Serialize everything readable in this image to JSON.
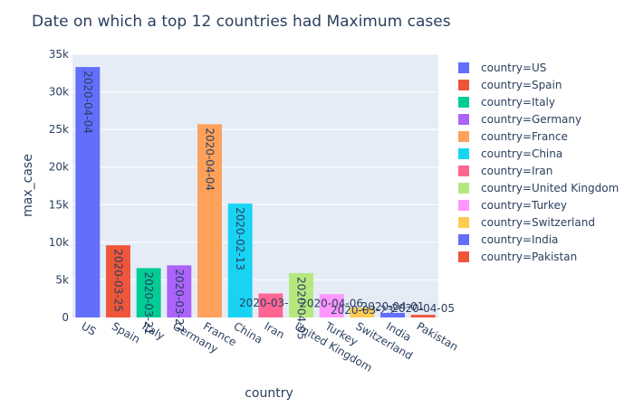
{
  "chart_data": {
    "type": "bar",
    "title": "Date on which a top 12 countries had Maximum cases",
    "xlabel": "country",
    "ylabel": "max_case",
    "ylim": [
      0,
      35000
    ],
    "yticks": [
      0,
      5000,
      10000,
      15000,
      20000,
      25000,
      30000,
      35000
    ],
    "ytick_labels": [
      "0",
      "5k",
      "10k",
      "15k",
      "20k",
      "25k",
      "30k",
      "35k"
    ],
    "grid": true,
    "legend_position": "right",
    "categories": [
      "US",
      "Spain",
      "Italy",
      "Germany",
      "France",
      "China",
      "Iran",
      "United Kingdom",
      "Turkey",
      "Switzerland",
      "India",
      "Pakistan"
    ],
    "series": [
      {
        "name": "country=US",
        "category": "US",
        "value": 33300,
        "label": "2020-04-04",
        "color": "#636efa"
      },
      {
        "name": "country=Spain",
        "category": "Spain",
        "value": 9600,
        "label": "2020-03-25",
        "color": "#EF553B"
      },
      {
        "name": "country=Italy",
        "category": "Italy",
        "value": 6560,
        "label": "2020-03-21",
        "color": "#00cc96"
      },
      {
        "name": "country=Germany",
        "category": "Germany",
        "value": 6930,
        "label": "2020-03-27",
        "color": "#ab63fa"
      },
      {
        "name": "country=France",
        "category": "France",
        "value": 25700,
        "label": "2020-04-04",
        "color": "#FFA15A"
      },
      {
        "name": "country=China",
        "category": "China",
        "value": 15140,
        "label": "2020-02-13",
        "color": "#19d3f3"
      },
      {
        "name": "country=Iran",
        "category": "Iran",
        "value": 3190,
        "label": "2020-03-30",
        "color": "#FF6692"
      },
      {
        "name": "country=United Kingdom",
        "category": "United Kingdom",
        "value": 5900,
        "label": "2020-04-05",
        "color": "#B6E880"
      },
      {
        "name": "country=Turkey",
        "category": "Turkey",
        "value": 3100,
        "label": "2020-04-06",
        "color": "#FF97FF"
      },
      {
        "name": "country=Switzerland",
        "category": "Switzerland",
        "value": 1300,
        "label": "2020-03-23",
        "color": "#FECB52"
      },
      {
        "name": "country=India",
        "category": "India",
        "value": 600,
        "label": "2020-04-01",
        "color": "#636efa"
      },
      {
        "name": "country=Pakistan",
        "category": "Pakistan",
        "value": 350,
        "label": "2020-04-05",
        "color": "#EF553B"
      }
    ]
  }
}
